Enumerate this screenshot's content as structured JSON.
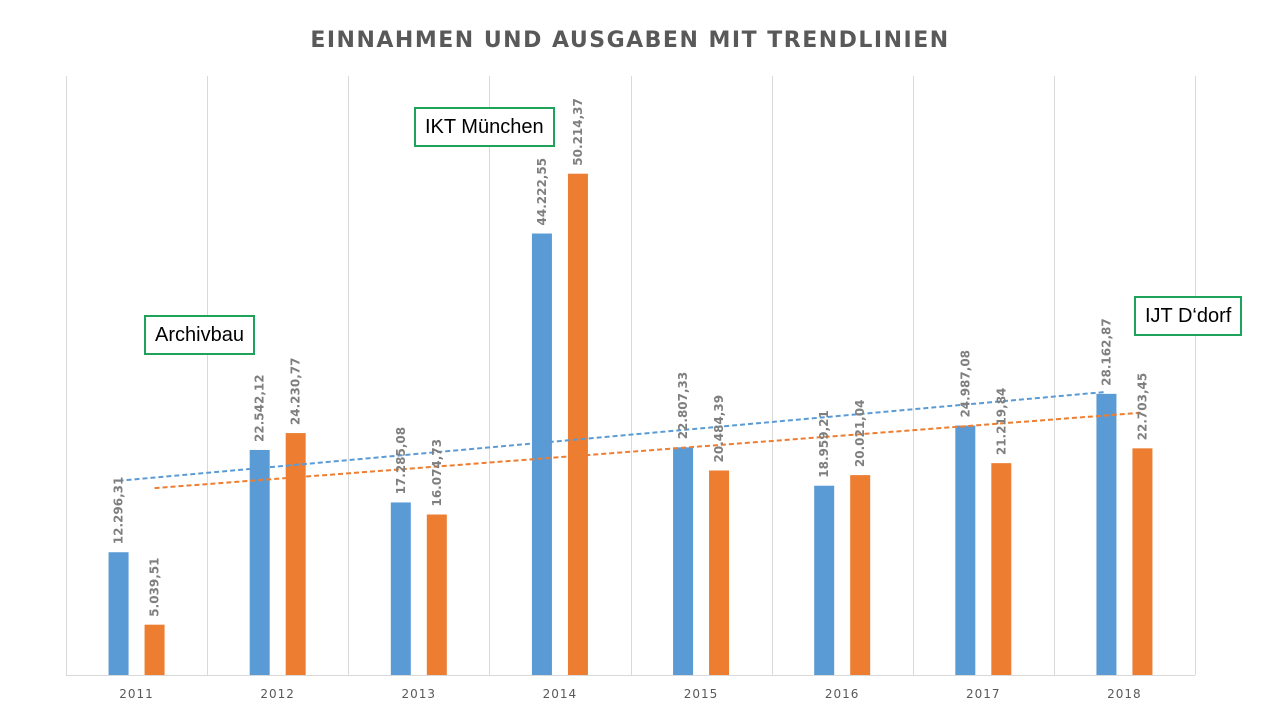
{
  "chart_data": {
    "type": "bar",
    "title": "EINNAHMEN UND AUSGABEN MIT TRENDLINIEN",
    "categories": [
      "2011",
      "2012",
      "2013",
      "2014",
      "2015",
      "2016",
      "2017",
      "2018"
    ],
    "series": [
      {
        "color": "#5b9bd5",
        "values": [
          12296.31,
          22542.12,
          17285.08,
          44222.55,
          22807.33,
          18959.21,
          24987.08,
          28162.87
        ],
        "labels": [
          "12.296,31",
          "22.542,12",
          "17.285,08",
          "44.222,55",
          "22.807,33",
          "18.959,21",
          "24.987,08",
          "28.162,87"
        ]
      },
      {
        "color": "#ed7d31",
        "values": [
          5039.51,
          24230.77,
          16074.73,
          50214.37,
          20484.39,
          20021.04,
          21219.84,
          22703.45
        ],
        "labels": [
          "5.039,51",
          "24.230,77",
          "16.074,73",
          "50.214,37",
          "20.484,39",
          "20.021,04",
          "21.219,84",
          "22.703,45"
        ]
      }
    ],
    "trendlines": "linear, dashed, one per series",
    "ylim": [
      0,
      60000
    ],
    "y_axis_visible": false,
    "grid": "vertical",
    "legend": "none",
    "annotations": [
      {
        "text": "Archivbau"
      },
      {
        "text": "IKT München"
      },
      {
        "text": "IJT D‘dorf"
      }
    ]
  }
}
